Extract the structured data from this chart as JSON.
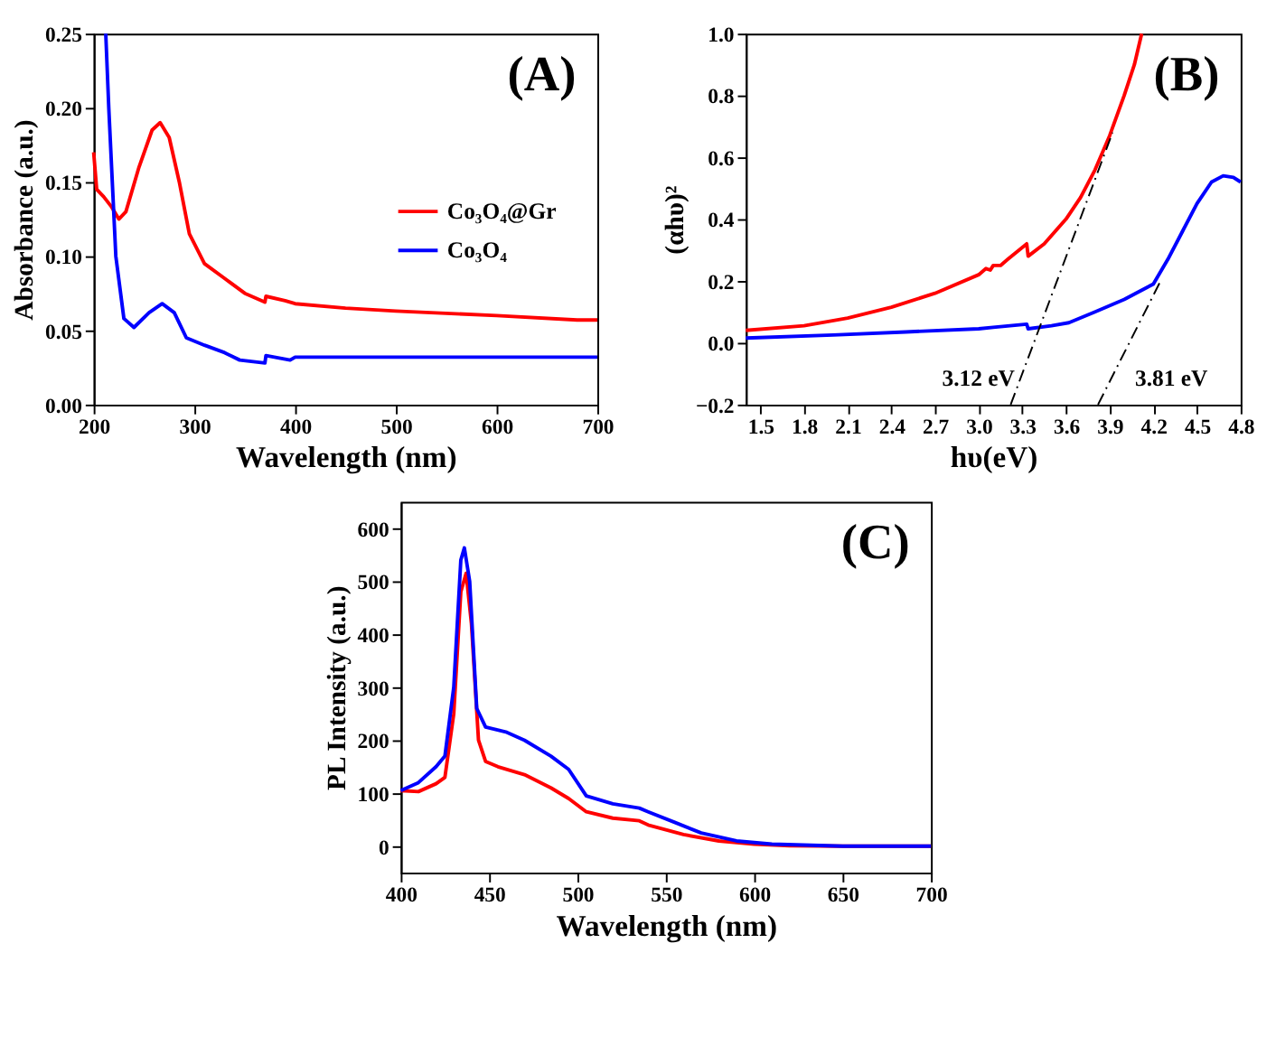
{
  "chart_data": [
    {
      "type": "line",
      "xlabel": "Wavelength (nm)",
      "ylabel": "Absorbance (a.u.)",
      "xlim": [
        200,
        700
      ],
      "ylim": [
        0,
        0.25
      ],
      "xticks": [
        200,
        300,
        400,
        500,
        600,
        700
      ],
      "yticks": [
        {
          "value": 0,
          "label": "0.00"
        },
        0.05,
        {
          "value": 0.1,
          "label": "0.10"
        },
        0.15,
        {
          "value": 0.2,
          "label": "0.20"
        },
        0.25
      ],
      "legend": "right",
      "grid": false,
      "annotations": [
        "(A)"
      ],
      "series": [
        {
          "name": "Co₃O₄@Gr",
          "color": "#ff0000",
          "x": [
            200,
            203,
            210,
            218,
            225,
            232,
            245,
            258,
            266,
            275,
            285,
            295,
            310,
            330,
            350,
            370,
            371,
            390,
            400,
            450,
            500,
            600,
            680,
            700
          ],
          "values": [
            0.17,
            0.145,
            0.14,
            0.133,
            0.125,
            0.13,
            0.16,
            0.185,
            0.19,
            0.18,
            0.15,
            0.115,
            0.095,
            0.085,
            0.075,
            0.069,
            0.073,
            0.07,
            0.068,
            0.065,
            0.063,
            0.06,
            0.057,
            0.057
          ]
        },
        {
          "name": "Co₃O₄",
          "color": "#0000ff",
          "x": [
            212,
            215,
            222,
            230,
            240,
            255,
            268,
            280,
            292,
            310,
            330,
            345,
            370,
            371,
            395,
            400,
            500,
            700
          ],
          "values": [
            0.25,
            0.2,
            0.1,
            0.058,
            0.052,
            0.062,
            0.068,
            0.062,
            0.045,
            0.04,
            0.035,
            0.03,
            0.028,
            0.033,
            0.03,
            0.032,
            0.032,
            0.032
          ]
        }
      ]
    },
    {
      "type": "line",
      "xlabel": "hυ(eV)",
      "ylabel": "(αhυ)²",
      "xlim": [
        1.4,
        4.8
      ],
      "ylim": [
        -0.2,
        1.0
      ],
      "xticks": [
        1.5,
        1.8,
        2.1,
        2.4,
        2.7,
        {
          "value": 3,
          "label": "3.0"
        },
        3.3,
        3.6,
        3.9,
        4.2,
        4.5,
        4.8
      ],
      "yticks": [
        -0.2,
        {
          "value": 0,
          "label": "0.0"
        },
        0.2,
        0.4,
        0.6,
        0.8,
        {
          "value": 1,
          "label": "1.0"
        }
      ],
      "legend": "left",
      "grid": false,
      "annotations": [
        "(B)",
        "3.12 eV",
        "3.81 eV"
      ],
      "series": [
        {
          "name": "Co₃O₄@Gr",
          "color": "#ff0000",
          "x": [
            1.4,
            1.8,
            2.1,
            2.4,
            2.7,
            3.0,
            3.05,
            3.08,
            3.1,
            3.15,
            3.2,
            3.33,
            3.34,
            3.45,
            3.6,
            3.7,
            3.8,
            3.9,
            4.0,
            4.07,
            4.12
          ],
          "values": [
            0.04,
            0.055,
            0.08,
            0.115,
            0.16,
            0.22,
            0.24,
            0.235,
            0.25,
            0.25,
            0.27,
            0.32,
            0.28,
            0.32,
            0.4,
            0.47,
            0.56,
            0.67,
            0.8,
            0.9,
            1.0
          ]
        },
        {
          "name": "Co₃O₄",
          "color": "#0000ff",
          "x": [
            1.4,
            2.0,
            2.5,
            3.0,
            3.1,
            3.33,
            3.34,
            3.5,
            3.62,
            3.8,
            4.0,
            4.2,
            4.3,
            4.4,
            4.5,
            4.6,
            4.68,
            4.75,
            4.8
          ],
          "values": [
            0.015,
            0.025,
            0.035,
            0.045,
            0.05,
            0.06,
            0.045,
            0.055,
            0.065,
            0.1,
            0.14,
            0.19,
            0.27,
            0.36,
            0.45,
            0.52,
            0.54,
            0.535,
            0.52
          ]
        },
        {
          "type": "line",
          "color": "#000000",
          "line_style": "dashed",
          "x": [
            3.22,
            3.92
          ],
          "values": [
            -0.2,
            0.68
          ]
        },
        {
          "type": "line",
          "color": "#000000",
          "line_style": "dashed",
          "x": [
            3.82,
            4.25
          ],
          "values": [
            -0.2,
            0.2
          ]
        }
      ]
    },
    {
      "type": "line",
      "xlabel": "Wavelength (nm)",
      "ylabel": "PL Intensity (a.u.)",
      "xlim": [
        400,
        700
      ],
      "ylim": [
        -50,
        650
      ],
      "xticks": [
        400,
        450,
        500,
        550,
        600,
        650,
        700
      ],
      "yticks": [
        0,
        100,
        200,
        300,
        400,
        500,
        600
      ],
      "legend": "right",
      "grid": false,
      "annotations": [
        "(C)"
      ],
      "series": [
        {
          "name": "Co₃O₄@Gr",
          "color": "#ff0000",
          "x": [
            400,
            410,
            420,
            425,
            430,
            434,
            437,
            440,
            444,
            448,
            455,
            470,
            485,
            495,
            505,
            520,
            535,
            540,
            560,
            580,
            600,
            620,
            650,
            700
          ],
          "values": [
            105,
            103,
            118,
            130,
            250,
            480,
            515,
            420,
            200,
            160,
            150,
            135,
            110,
            90,
            65,
            53,
            48,
            40,
            22,
            10,
            4,
            1,
            0,
            0
          ]
        },
        {
          "name": "Co₃O₄",
          "color": "#0000ff",
          "x": [
            400,
            410,
            420,
            425,
            430,
            434,
            436,
            439,
            443,
            448,
            460,
            470,
            485,
            495,
            505,
            520,
            535,
            540,
            555,
            570,
            590,
            610,
            650,
            700
          ],
          "values": [
            105,
            120,
            150,
            170,
            300,
            540,
            563,
            500,
            260,
            225,
            215,
            200,
            170,
            145,
            95,
            80,
            72,
            65,
            45,
            25,
            10,
            4,
            0,
            0
          ]
        }
      ]
    }
  ]
}
